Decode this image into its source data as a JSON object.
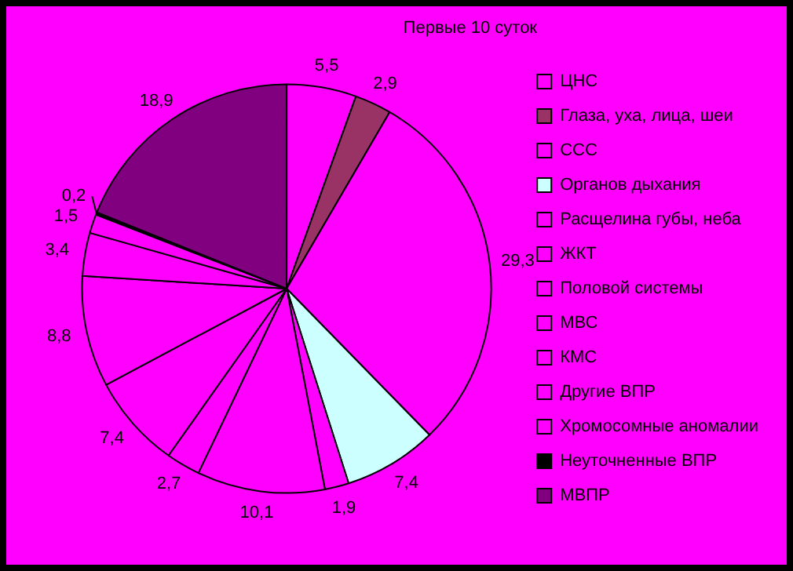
{
  "chart_data": {
    "type": "pie",
    "title": "Первые 10 суток",
    "categories": [
      "ЦНС",
      "Глаза, уха, лица, шеи",
      "ССС",
      "Органов дыхания",
      "Расщелина губы, неба",
      "ЖКТ",
      "Половой системы",
      "МВС",
      "КМС",
      "Другие ВПР",
      "Хромосомные аномалии",
      "Неуточненные ВПР",
      "МВПР"
    ],
    "values": [
      5.5,
      2.9,
      29.3,
      7.4,
      1.9,
      10.1,
      2.7,
      7.4,
      8.8,
      3.4,
      1.5,
      0.2,
      18.9
    ],
    "colors": [
      "#ff00ff",
      "#993366",
      "#ff00ff",
      "#ccffff",
      "#ff00ff",
      "#ff00ff",
      "#ff00ff",
      "#ff00ff",
      "#ff00ff",
      "#ff00ff",
      "#ff00ff",
      "#000000",
      "#800080"
    ],
    "value_labels": [
      "5,5",
      "2,9",
      "29,3",
      "7,4",
      "1,9",
      "10,1",
      "2,7",
      "7,4",
      "8,8",
      "3,4",
      "1,5",
      "0,2",
      "18,9"
    ],
    "legend": "right"
  }
}
